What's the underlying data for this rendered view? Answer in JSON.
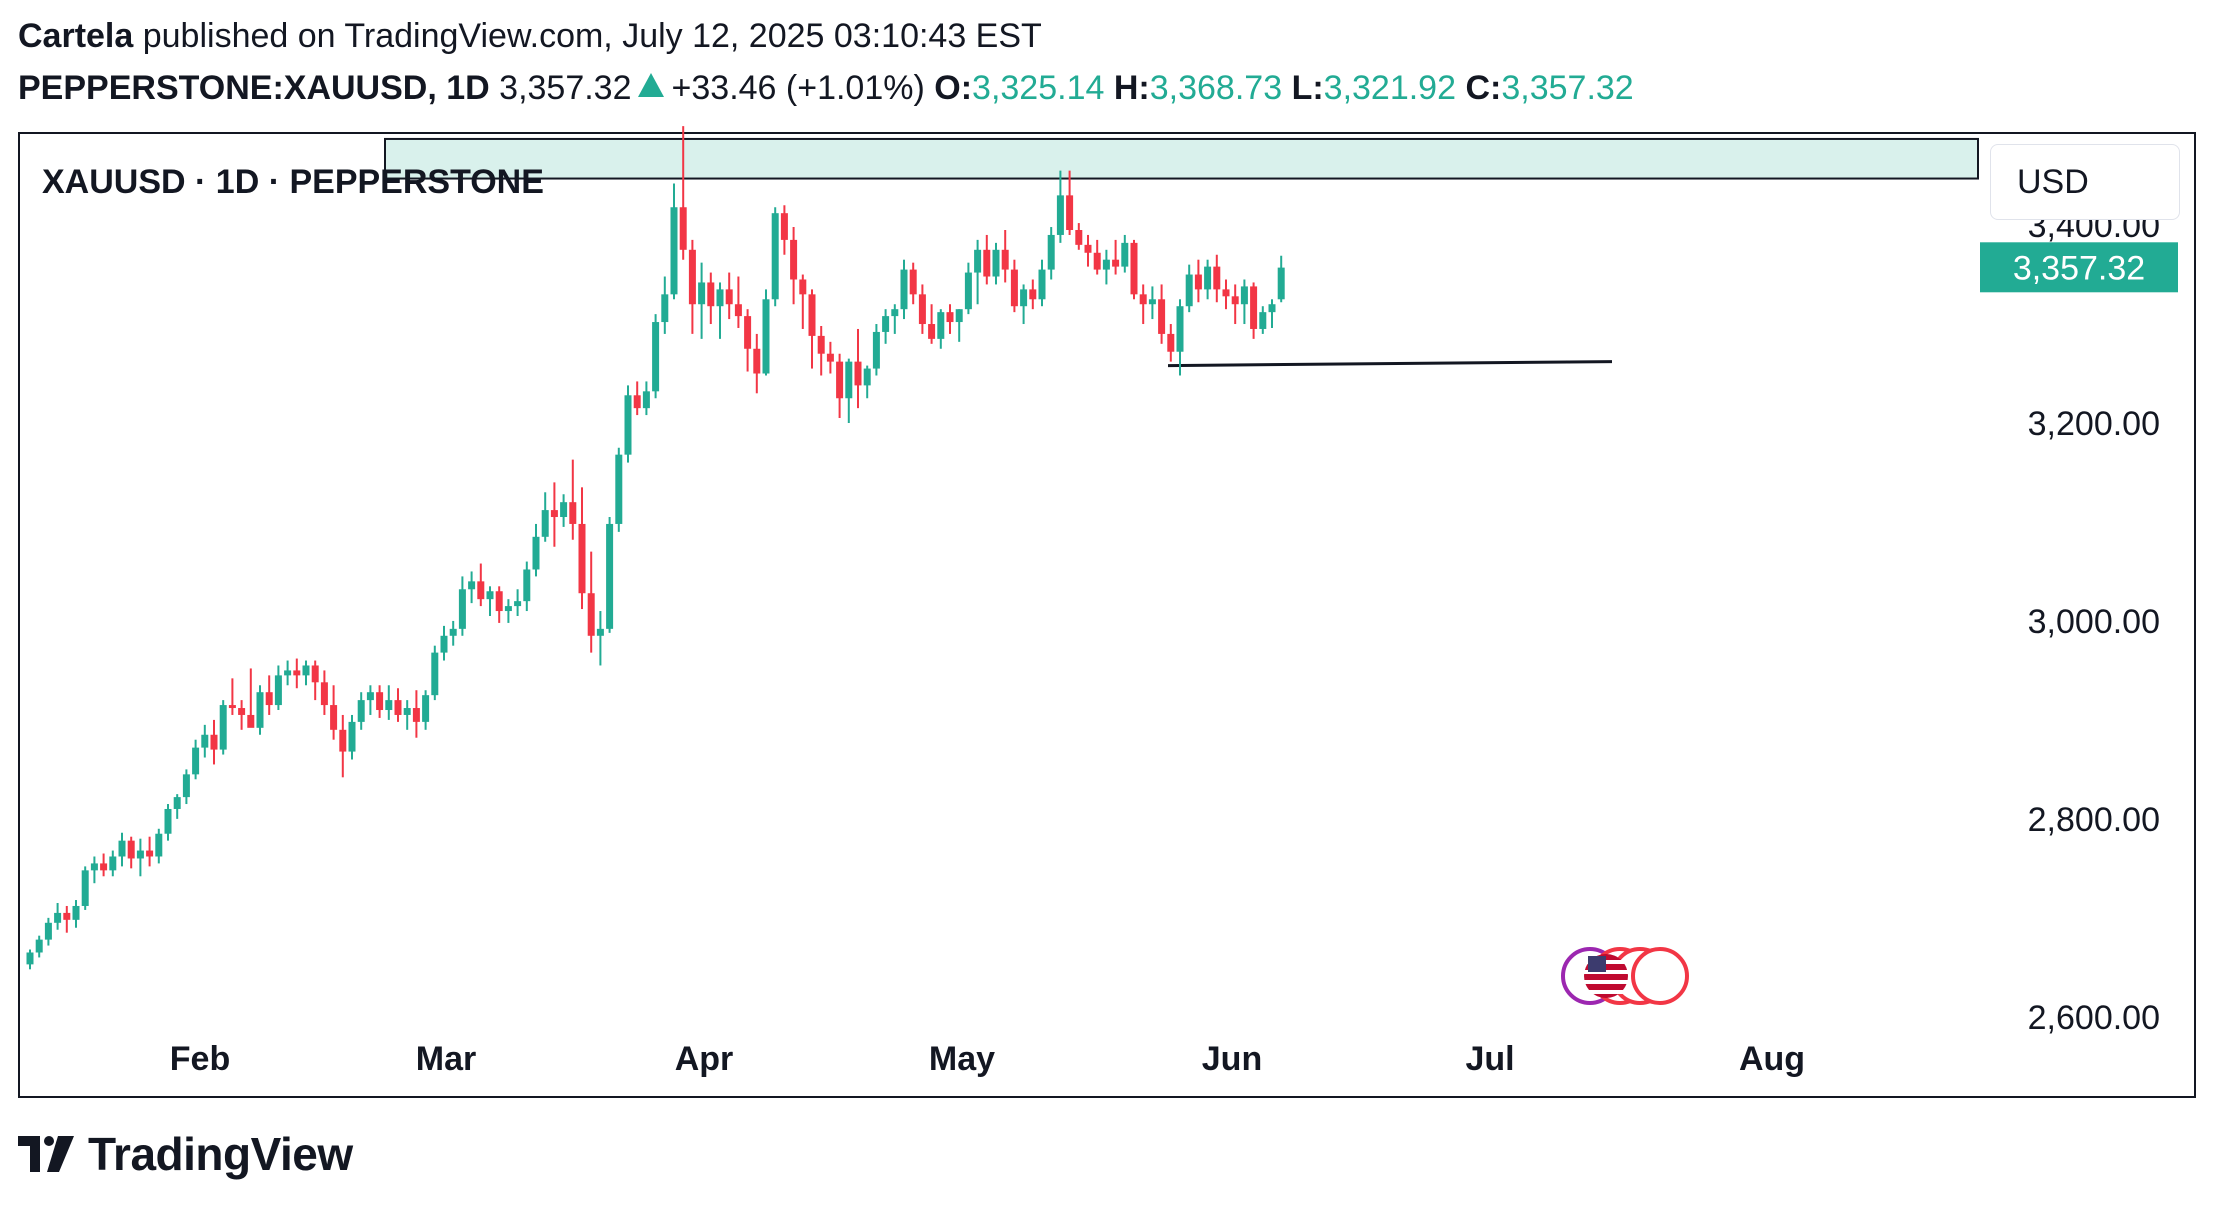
{
  "header": {
    "author": "Cartela",
    "published_text": "published on TradingView.com, July 12, 2025 03:10:43 EST",
    "symbol_full": "PEPPERSTONE:XAUUSD, 1D",
    "last_price": "3,357.32",
    "change": "+33.46 (+1.01%)",
    "ohlc": [
      {
        "key": "O:",
        "value": "3,325.14"
      },
      {
        "key": "H:",
        "value": "3,368.73"
      },
      {
        "key": "L:",
        "value": "3,321.92"
      },
      {
        "key": "C:",
        "value": "3,357.32"
      }
    ]
  },
  "chart_title": "XAUUSD · 1D · PEPPERSTONE",
  "currency_button": "USD",
  "footer": {
    "brand": "TradingView"
  },
  "colors": {
    "up": "#22ab94",
    "down": "#f23645",
    "zone_fill": "#d9f1ec",
    "price_label_bg": "#22ab94"
  },
  "chart_data": {
    "type": "candlestick",
    "symbol": "XAUUSD",
    "interval": "1D",
    "x_labels": [
      "Feb",
      "Mar",
      "Apr",
      "May",
      "Jun",
      "Jul",
      "Aug"
    ],
    "y_ticks": [
      "2,600.00",
      "2,800.00",
      "3,000.00",
      "3,200.00",
      "3,400.00"
    ],
    "y_tick_values": [
      2600,
      2800,
      3000,
      3200,
      3400
    ],
    "ylim": [
      2520,
      3492
    ],
    "last_price_label": "3,357.32",
    "last_price": 3357.32,
    "resistance_zone": {
      "from": 3447,
      "to": 3487
    },
    "support_line": {
      "from": 3258,
      "to": 3262
    },
    "candles": [
      [
        2653,
        2668,
        2648,
        2665
      ],
      [
        2665,
        2682,
        2660,
        2678
      ],
      [
        2678,
        2700,
        2672,
        2695
      ],
      [
        2695,
        2715,
        2688,
        2705
      ],
      [
        2705,
        2712,
        2685,
        2698
      ],
      [
        2698,
        2718,
        2690,
        2712
      ],
      [
        2712,
        2752,
        2708,
        2748
      ],
      [
        2748,
        2762,
        2735,
        2755
      ],
      [
        2755,
        2765,
        2742,
        2748
      ],
      [
        2748,
        2768,
        2742,
        2762
      ],
      [
        2762,
        2786,
        2752,
        2778
      ],
      [
        2778,
        2782,
        2750,
        2760
      ],
      [
        2760,
        2780,
        2742,
        2768
      ],
      [
        2768,
        2782,
        2752,
        2762
      ],
      [
        2762,
        2790,
        2755,
        2785
      ],
      [
        2785,
        2815,
        2778,
        2810
      ],
      [
        2810,
        2825,
        2800,
        2822
      ],
      [
        2822,
        2850,
        2815,
        2845
      ],
      [
        2845,
        2880,
        2840,
        2872
      ],
      [
        2872,
        2895,
        2862,
        2885
      ],
      [
        2885,
        2900,
        2855,
        2870
      ],
      [
        2870,
        2920,
        2865,
        2915
      ],
      [
        2915,
        2942,
        2905,
        2912
      ],
      [
        2912,
        2920,
        2890,
        2905
      ],
      [
        2905,
        2952,
        2898,
        2892
      ],
      [
        2892,
        2935,
        2885,
        2928
      ],
      [
        2928,
        2945,
        2905,
        2915
      ],
      [
        2915,
        2955,
        2910,
        2945
      ],
      [
        2945,
        2960,
        2935,
        2950
      ],
      [
        2950,
        2962,
        2932,
        2945
      ],
      [
        2945,
        2960,
        2935,
        2955
      ],
      [
        2955,
        2960,
        2920,
        2938
      ],
      [
        2938,
        2950,
        2905,
        2915
      ],
      [
        2915,
        2935,
        2880,
        2890
      ],
      [
        2890,
        2905,
        2842,
        2868
      ],
      [
        2868,
        2905,
        2860,
        2898
      ],
      [
        2898,
        2928,
        2890,
        2920
      ],
      [
        2920,
        2935,
        2905,
        2928
      ],
      [
        2928,
        2935,
        2902,
        2910
      ],
      [
        2910,
        2935,
        2900,
        2920
      ],
      [
        2920,
        2932,
        2898,
        2905
      ],
      [
        2905,
        2920,
        2890,
        2912
      ],
      [
        2912,
        2930,
        2882,
        2898
      ],
      [
        2898,
        2930,
        2890,
        2925
      ],
      [
        2925,
        2975,
        2920,
        2968
      ],
      [
        2968,
        2995,
        2960,
        2985
      ],
      [
        2985,
        3000,
        2975,
        2992
      ],
      [
        2992,
        3045,
        2985,
        3032
      ],
      [
        3032,
        3050,
        3018,
        3040
      ],
      [
        3040,
        3058,
        3015,
        3022
      ],
      [
        3022,
        3035,
        3005,
        3030
      ],
      [
        3030,
        3035,
        2998,
        3010
      ],
      [
        3010,
        3022,
        2998,
        3015
      ],
      [
        3015,
        3032,
        3005,
        3020
      ],
      [
        3020,
        3060,
        3010,
        3052
      ],
      [
        3052,
        3098,
        3045,
        3085
      ],
      [
        3085,
        3130,
        3080,
        3112
      ],
      [
        3112,
        3140,
        3075,
        3105
      ],
      [
        3105,
        3128,
        3095,
        3120
      ],
      [
        3120,
        3163,
        3082,
        3098
      ],
      [
        3098,
        3135,
        3012,
        3028
      ],
      [
        3028,
        3070,
        2968,
        2985
      ],
      [
        2985,
        3010,
        2955,
        2992
      ],
      [
        2992,
        3105,
        2988,
        3098
      ],
      [
        3098,
        3175,
        3090,
        3168
      ],
      [
        3168,
        3238,
        3160,
        3228
      ],
      [
        3228,
        3242,
        3208,
        3215
      ],
      [
        3215,
        3242,
        3208,
        3232
      ],
      [
        3232,
        3310,
        3225,
        3302
      ],
      [
        3302,
        3348,
        3290,
        3330
      ],
      [
        3330,
        3442,
        3325,
        3418
      ],
      [
        3418,
        3500,
        3365,
        3375
      ],
      [
        3375,
        3385,
        3290,
        3320
      ],
      [
        3320,
        3362,
        3285,
        3342
      ],
      [
        3342,
        3352,
        3300,
        3318
      ],
      [
        3318,
        3342,
        3285,
        3335
      ],
      [
        3335,
        3352,
        3305,
        3320
      ],
      [
        3320,
        3348,
        3296,
        3308
      ],
      [
        3308,
        3315,
        3252,
        3275
      ],
      [
        3275,
        3290,
        3230,
        3250
      ],
      [
        3250,
        3335,
        3248,
        3325
      ],
      [
        3325,
        3418,
        3318,
        3412
      ],
      [
        3412,
        3420,
        3370,
        3385
      ],
      [
        3385,
        3398,
        3320,
        3345
      ],
      [
        3345,
        3350,
        3295,
        3330
      ],
      [
        3330,
        3335,
        3255,
        3288
      ],
      [
        3288,
        3298,
        3248,
        3270
      ],
      [
        3270,
        3282,
        3250,
        3262
      ],
      [
        3262,
        3270,
        3205,
        3225
      ],
      [
        3225,
        3265,
        3200,
        3262
      ],
      [
        3262,
        3295,
        3215,
        3238
      ],
      [
        3238,
        3258,
        3225,
        3255
      ],
      [
        3255,
        3300,
        3248,
        3292
      ],
      [
        3292,
        3315,
        3280,
        3308
      ],
      [
        3308,
        3320,
        3290,
        3315
      ],
      [
        3315,
        3365,
        3305,
        3355
      ],
      [
        3355,
        3362,
        3320,
        3330
      ],
      [
        3330,
        3340,
        3290,
        3300
      ],
      [
        3300,
        3320,
        3280,
        3285
      ],
      [
        3285,
        3315,
        3275,
        3312
      ],
      [
        3312,
        3320,
        3290,
        3302
      ],
      [
        3302,
        3315,
        3282,
        3315
      ],
      [
        3315,
        3362,
        3310,
        3352
      ],
      [
        3352,
        3385,
        3320,
        3375
      ],
      [
        3375,
        3390,
        3340,
        3348
      ],
      [
        3348,
        3382,
        3340,
        3375
      ],
      [
        3375,
        3395,
        3342,
        3355
      ],
      [
        3355,
        3365,
        3312,
        3318
      ],
      [
        3318,
        3340,
        3300,
        3335
      ],
      [
        3335,
        3345,
        3315,
        3325
      ],
      [
        3325,
        3365,
        3318,
        3355
      ],
      [
        3355,
        3398,
        3345,
        3390
      ],
      [
        3390,
        3455,
        3382,
        3430
      ],
      [
        3430,
        3455,
        3390,
        3395
      ],
      [
        3395,
        3402,
        3375,
        3380
      ],
      [
        3380,
        3390,
        3358,
        3372
      ],
      [
        3372,
        3385,
        3350,
        3355
      ],
      [
        3355,
        3375,
        3340,
        3365
      ],
      [
        3365,
        3385,
        3350,
        3358
      ],
      [
        3358,
        3390,
        3352,
        3382
      ],
      [
        3382,
        3385,
        3325,
        3330
      ],
      [
        3330,
        3340,
        3300,
        3320
      ],
      [
        3320,
        3338,
        3305,
        3325
      ],
      [
        3325,
        3340,
        3280,
        3290
      ],
      [
        3290,
        3300,
        3262,
        3272
      ],
      [
        3272,
        3325,
        3248,
        3318
      ],
      [
        3318,
        3360,
        3312,
        3350
      ],
      [
        3350,
        3365,
        3322,
        3335
      ],
      [
        3335,
        3365,
        3325,
        3358
      ],
      [
        3358,
        3370,
        3322,
        3335
      ],
      [
        3335,
        3345,
        3315,
        3328
      ],
      [
        3328,
        3340,
        3300,
        3320
      ],
      [
        3320,
        3345,
        3300,
        3338
      ],
      [
        3338,
        3342,
        3285,
        3295
      ],
      [
        3295,
        3318,
        3290,
        3312
      ],
      [
        3312,
        3325,
        3296,
        3320
      ],
      [
        3325,
        3369,
        3322,
        3357
      ]
    ]
  }
}
